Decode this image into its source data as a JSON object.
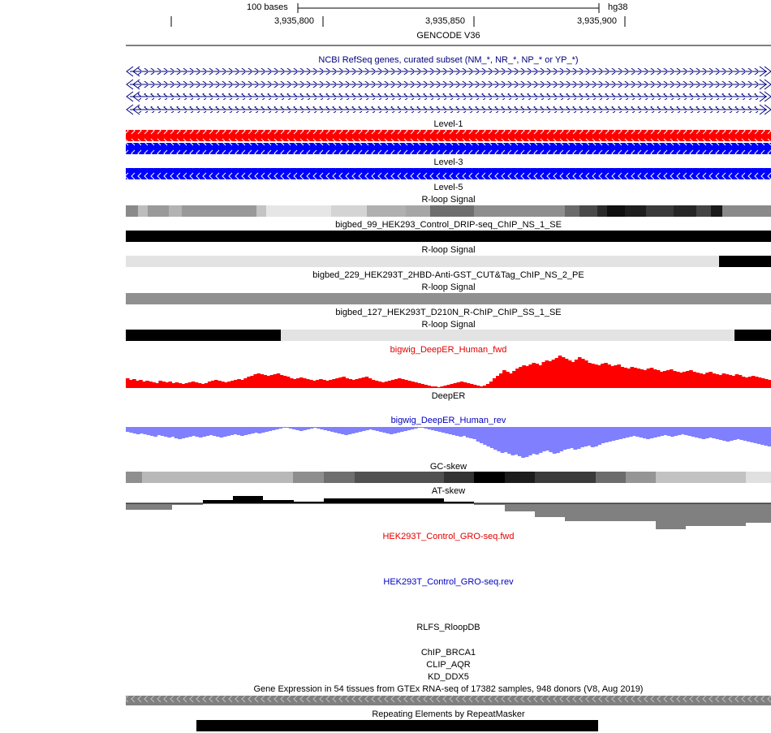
{
  "ruler": {
    "scale_label": "100 bases",
    "assembly": "hg38",
    "positions": [
      "3,935,800",
      "3,935,850",
      "3,935,900"
    ]
  },
  "tracks": {
    "gencode": "GENCODE V36",
    "refseq": "NCBI RefSeq genes, curated subset (NM_*, NR_*, NP_* or YP_*)",
    "level1": "Level-1",
    "level3": "Level-3",
    "level5": "Level-5",
    "rloop_signal_1": "R-loop Signal",
    "bigbed_99": "bigbed_99_HEK293_Control_DRIP-seq_ChIP_NS_1_SE",
    "rloop_signal_2": "R-loop Signal",
    "bigbed_229": "bigbed_229_HEK293T_2HBD-Anti-GST_CUT&Tag_ChIP_NS_2_PE",
    "rloop_signal_3": "R-loop Signal",
    "bigbed_127": "bigbed_127_HEK293T_D210N_R-ChIP_ChIP_SS_1_SE",
    "rloop_signal_4": "R-loop Signal",
    "deeper_fwd": "bigwig_DeepER_Human_fwd",
    "deeper": "DeepER",
    "deeper_rev": "bigwig_DeepER_Human_rev",
    "gc_skew": "GC-skew",
    "at_skew": "AT-skew",
    "gro_fwd": "HEK293T_Control_GRO-seq.fwd",
    "gro_rev": "HEK293T_Control_GRO-seq.rev",
    "rlfs": "RLFS_RloopDB",
    "chip_brca1": "ChIP_BRCA1",
    "clip_aqr": "CLIP_AQR",
    "kd_ddx5": "KD_DDX5",
    "gtex": "Gene Expression in 54 tissues from GTEx RNA-seq of 17382 samples, 948 donors (V8, Aug 2019)",
    "repeatmasker": "Repeating Elements by RepeatMasker"
  },
  "colors": {
    "red": "#ff0000",
    "blue": "#0000ff",
    "navy": "#000080",
    "deeper_rev_fill": "#8080ff",
    "gtex_gray": "#808080"
  },
  "deeper_fwd_values": [
    12,
    10,
    11,
    9,
    10,
    8,
    9,
    8,
    7,
    6,
    9,
    8,
    7,
    8,
    6,
    7,
    6,
    5,
    6,
    7,
    8,
    7,
    6,
    5,
    6,
    8,
    9,
    10,
    9,
    8,
    7,
    8,
    9,
    10,
    11,
    10,
    12,
    14,
    15,
    17,
    18,
    17,
    16,
    15,
    16,
    17,
    18,
    16,
    15,
    14,
    12,
    11,
    12,
    13,
    12,
    11,
    10,
    9,
    10,
    11,
    10,
    9,
    10,
    11,
    12,
    13,
    14,
    12,
    11,
    10,
    11,
    12,
    13,
    14,
    12,
    10,
    9,
    8,
    7,
    8,
    9,
    10,
    11,
    12,
    11,
    10,
    9,
    8,
    7,
    6,
    5,
    4,
    3,
    2,
    2,
    1,
    2,
    3,
    4,
    5,
    6,
    7,
    8,
    7,
    6,
    5,
    4,
    3,
    2,
    3,
    5,
    8,
    12,
    15,
    18,
    22,
    20,
    18,
    21,
    24,
    26,
    28,
    27,
    29,
    31,
    30,
    28,
    32,
    34,
    33,
    35,
    37,
    40,
    38,
    36,
    34,
    32,
    35,
    38,
    36,
    34,
    31,
    30,
    29,
    28,
    30,
    31,
    29,
    27,
    28,
    29,
    26,
    25,
    24,
    26,
    25,
    24,
    23,
    22,
    24,
    25,
    23,
    22,
    20,
    21,
    22,
    23,
    21,
    20,
    19,
    20,
    21,
    22,
    20,
    19,
    18,
    17,
    19,
    20,
    18,
    17,
    16,
    18,
    17,
    16,
    15,
    17,
    16,
    14,
    13,
    14,
    15,
    14,
    13,
    12,
    11,
    10
  ],
  "deeper_rev_values": [
    6,
    7,
    8,
    9,
    8,
    9,
    10,
    11,
    12,
    10,
    11,
    12,
    13,
    12,
    14,
    15,
    14,
    13,
    12,
    11,
    12,
    13,
    12,
    11,
    10,
    11,
    12,
    13,
    12,
    11,
    10,
    9,
    10,
    11,
    10,
    9,
    8,
    7,
    8,
    7,
    6,
    5,
    4,
    3,
    2,
    1,
    1,
    2,
    3,
    4,
    5,
    4,
    3,
    2,
    1,
    2,
    3,
    4,
    5,
    6,
    7,
    8,
    9,
    10,
    9,
    8,
    7,
    6,
    5,
    4,
    3,
    4,
    5,
    6,
    7,
    8,
    9,
    8,
    7,
    6,
    5,
    4,
    3,
    2,
    1,
    1,
    2,
    3,
    4,
    5,
    6,
    7,
    8,
    9,
    10,
    11,
    12,
    11,
    13,
    14,
    15,
    18,
    20,
    22,
    24,
    26,
    28,
    30,
    32,
    31,
    33,
    35,
    34,
    36,
    38,
    37,
    35,
    33,
    34,
    32,
    30,
    29,
    31,
    33,
    32,
    30,
    28,
    27,
    26,
    28,
    27,
    25,
    24,
    23,
    25,
    24,
    22,
    20,
    19,
    18,
    17,
    16,
    15,
    14,
    13,
    12,
    11,
    12,
    13,
    14,
    15,
    14,
    13,
    12,
    11,
    10,
    11,
    12,
    11,
    10,
    9,
    10,
    11,
    12,
    13,
    14,
    15,
    14,
    13,
    14,
    15,
    16,
    17,
    18,
    17,
    16,
    15,
    16,
    17,
    18,
    19,
    20,
    21,
    22,
    23,
    24
  ]
}
